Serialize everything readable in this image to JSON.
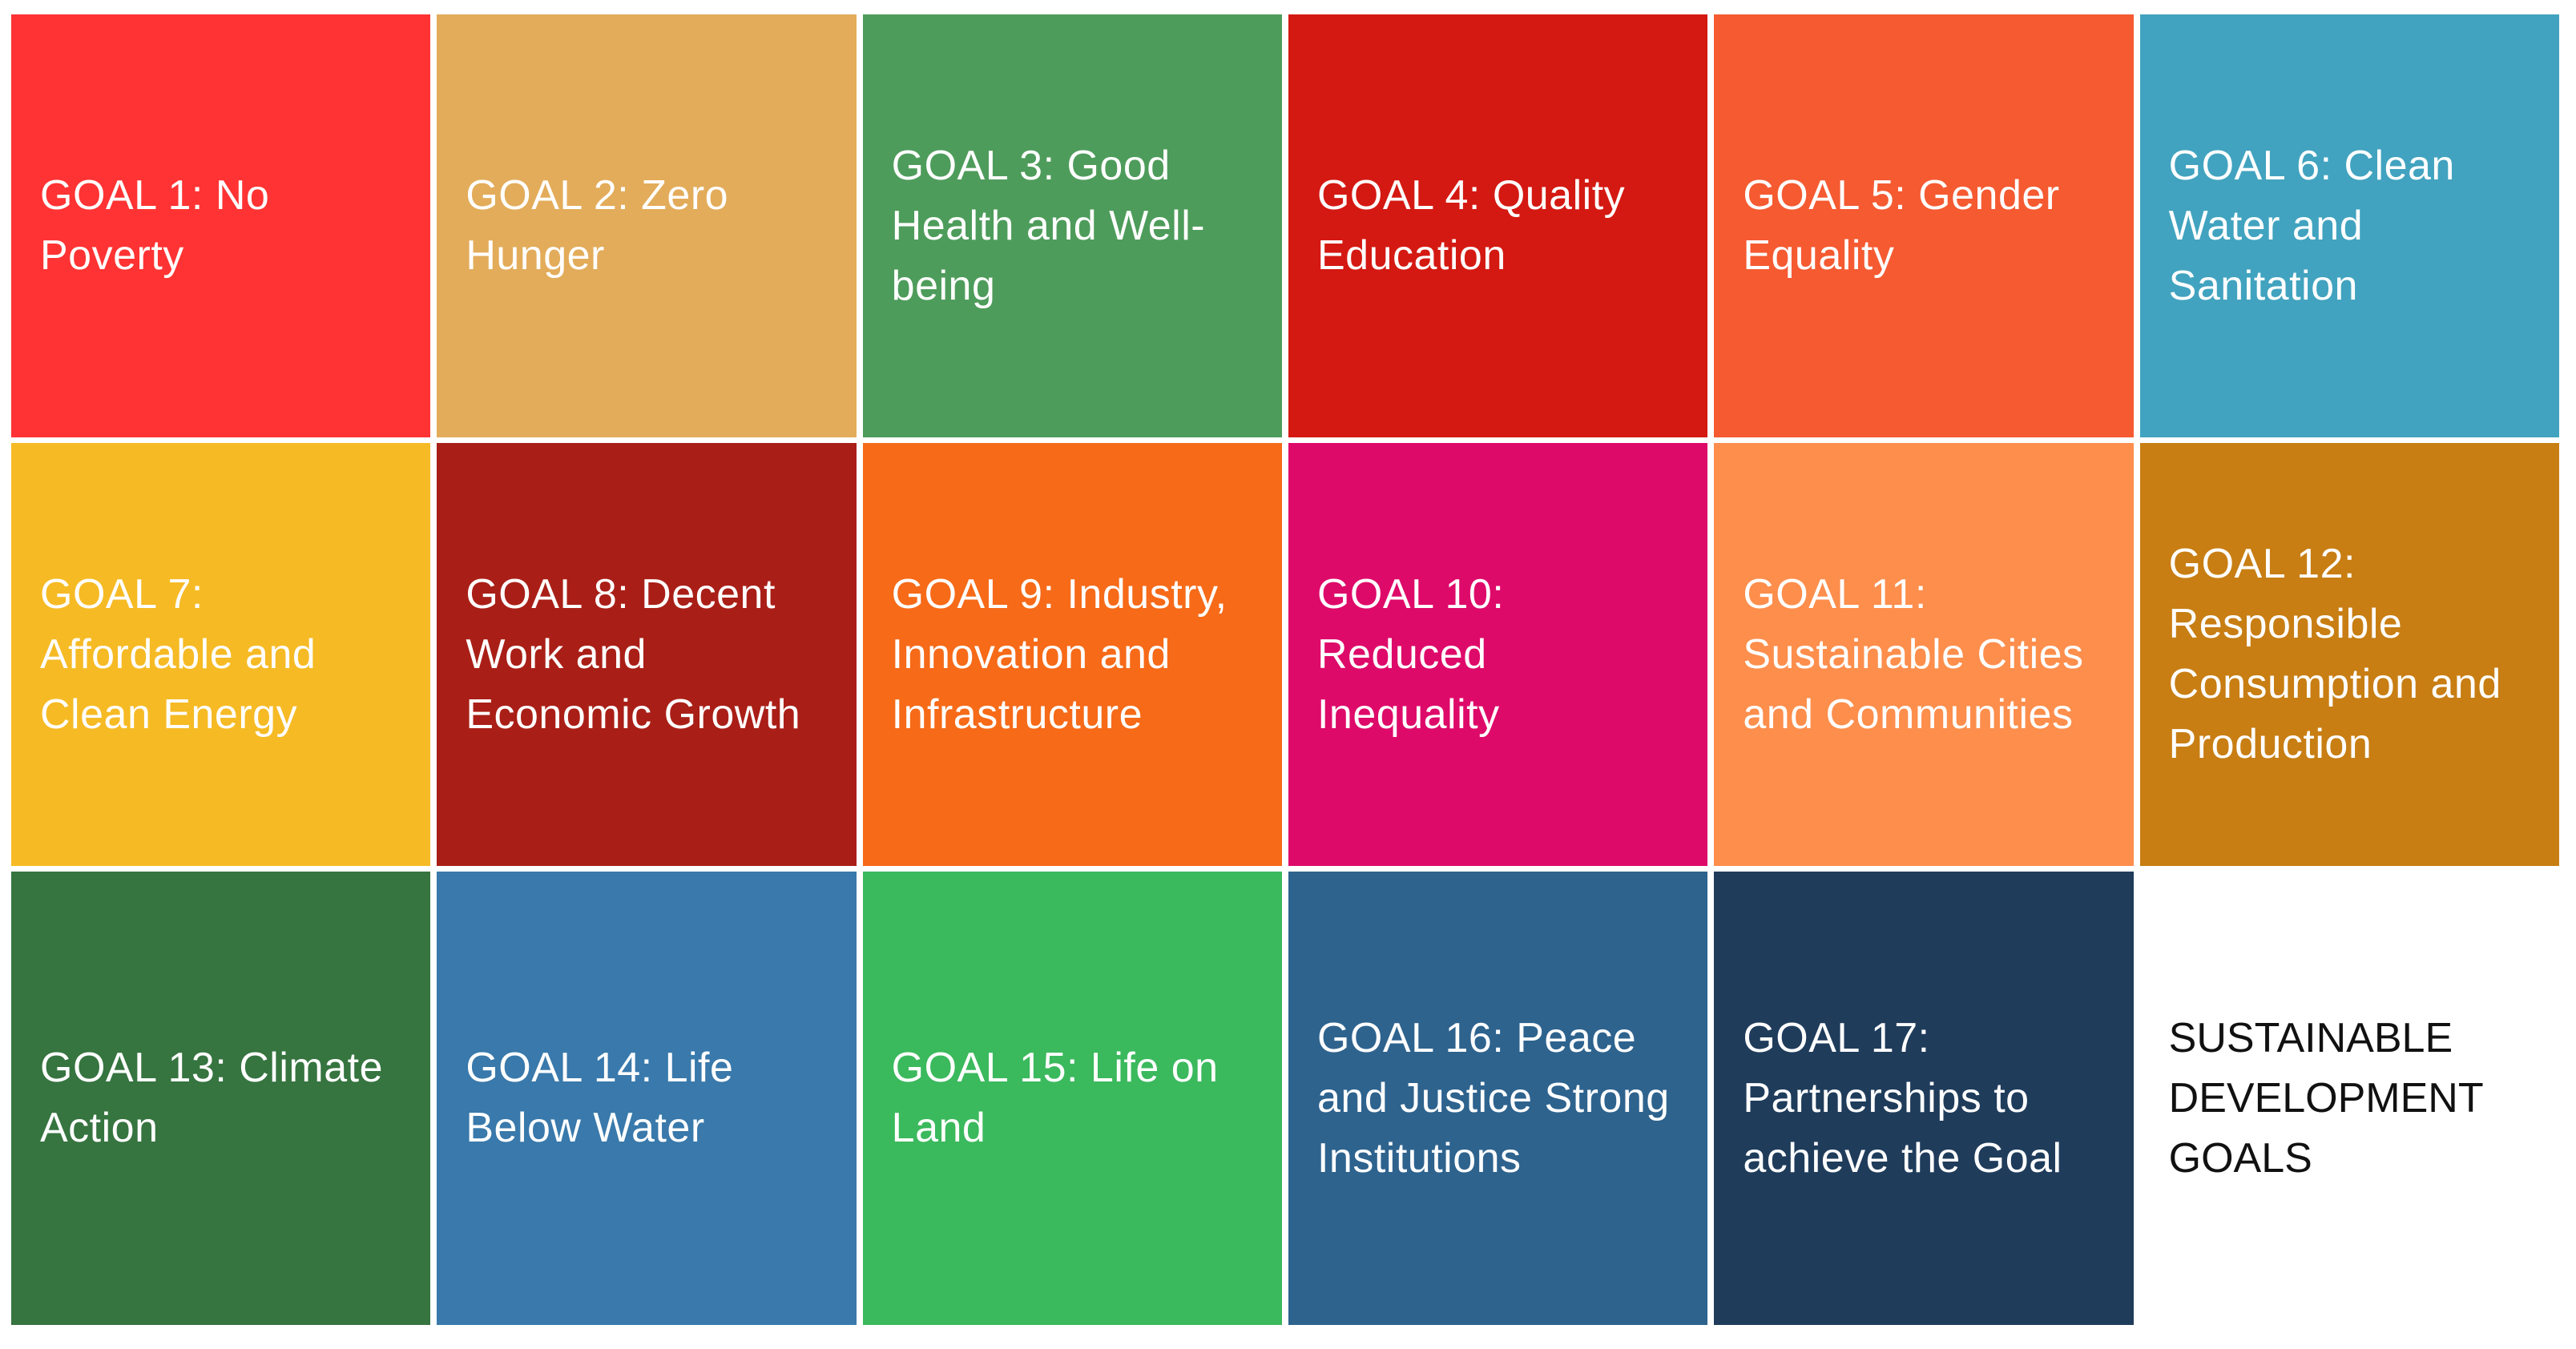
{
  "goals": [
    {
      "label": "GOAL 1: No Poverty",
      "color": "#FF3333"
    },
    {
      "label": "GOAL 2: Zero Hunger",
      "color": "#E3AC5A"
    },
    {
      "label": "GOAL 3: Good Health and Well-being",
      "color": "#4E9C5B"
    },
    {
      "label": "GOAL 4: Quality Education",
      "color": "#D41912"
    },
    {
      "label": "GOAL 5: Gender Equality",
      "color": "#F55A31"
    },
    {
      "label": "GOAL 6: Clean Water and Sanitation",
      "color": "#41A3BF"
    },
    {
      "label": "GOAL 7: Affordable and Clean Energy",
      "color": "#F6BA24"
    },
    {
      "label": "GOAL 8: Decent Work and Economic Growth",
      "color": "#A91F17"
    },
    {
      "label": "GOAL 9: Industry, Innovation and Infrastructure",
      "color": "#F66A18"
    },
    {
      "label": "GOAL 10: Reduced Inequality",
      "color": "#DE0A6A"
    },
    {
      "label": "GOAL 11: Sustainable Cities and Communities",
      "color": "#FD8E4C"
    },
    {
      "label": "GOAL 12: Responsible Consumption and Production",
      "color": "#C87E13"
    },
    {
      "label": "GOAL 13: Climate Action",
      "color": "#367440"
    },
    {
      "label": "GOAL 14: Life Below Water",
      "color": "#3979AB"
    },
    {
      "label": "GOAL 15: Life on Land",
      "color": "#3BB95D"
    },
    {
      "label": "GOAL 16: Peace and Justice Strong Institutions",
      "color": "#2E638E"
    },
    {
      "label": "GOAL 17: Partnerships to achieve the Goal",
      "color": "#1F3C5B"
    }
  ],
  "title": "SUSTAINABLE DEVELOPMENT GOALS"
}
